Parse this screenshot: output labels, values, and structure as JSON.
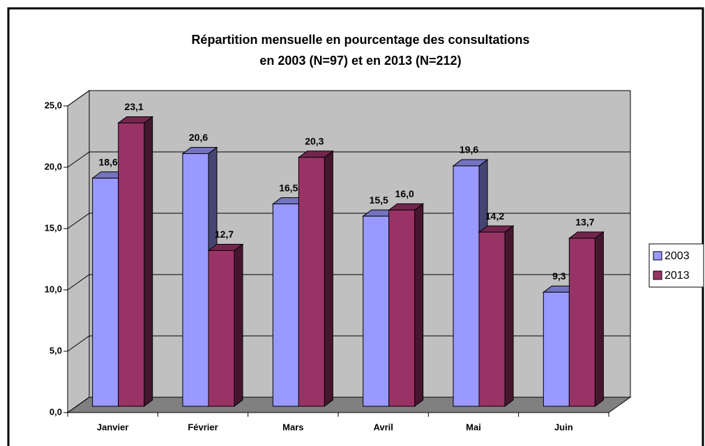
{
  "chart_data": {
    "type": "bar3d",
    "title": [
      "Répartition mensuelle en pourcentage des consultations",
      "en 2003 (N=97) et en 2013 (N=212)"
    ],
    "categories": [
      "Janvier",
      "Février",
      "Mars",
      "Avril",
      "Mai",
      "Juin"
    ],
    "series": [
      {
        "name": "2003",
        "color": "#9999ff",
        "values": [
          18.6,
          20.6,
          16.5,
          15.5,
          19.6,
          9.3
        ],
        "value_labels": [
          "18,6",
          "20,6",
          "16,5",
          "15,5",
          "19,6",
          "9,3"
        ]
      },
      {
        "name": "2013",
        "color": "#993366",
        "values": [
          23.1,
          12.7,
          20.3,
          16.0,
          14.2,
          13.7
        ],
        "value_labels": [
          "23,1",
          "12,7",
          "20,3",
          "16,0",
          "14,2",
          "13,7"
        ]
      }
    ],
    "ylim": [
      0,
      25
    ],
    "yticks": [
      {
        "value": 0,
        "label": "0,0"
      },
      {
        "value": 5,
        "label": "5,0"
      },
      {
        "value": 10,
        "label": "10,0"
      },
      {
        "value": 15,
        "label": "15,0"
      },
      {
        "value": 20,
        "label": "20,0"
      },
      {
        "value": 25,
        "label": "25,0"
      }
    ],
    "grid": true,
    "legend": "right"
  }
}
